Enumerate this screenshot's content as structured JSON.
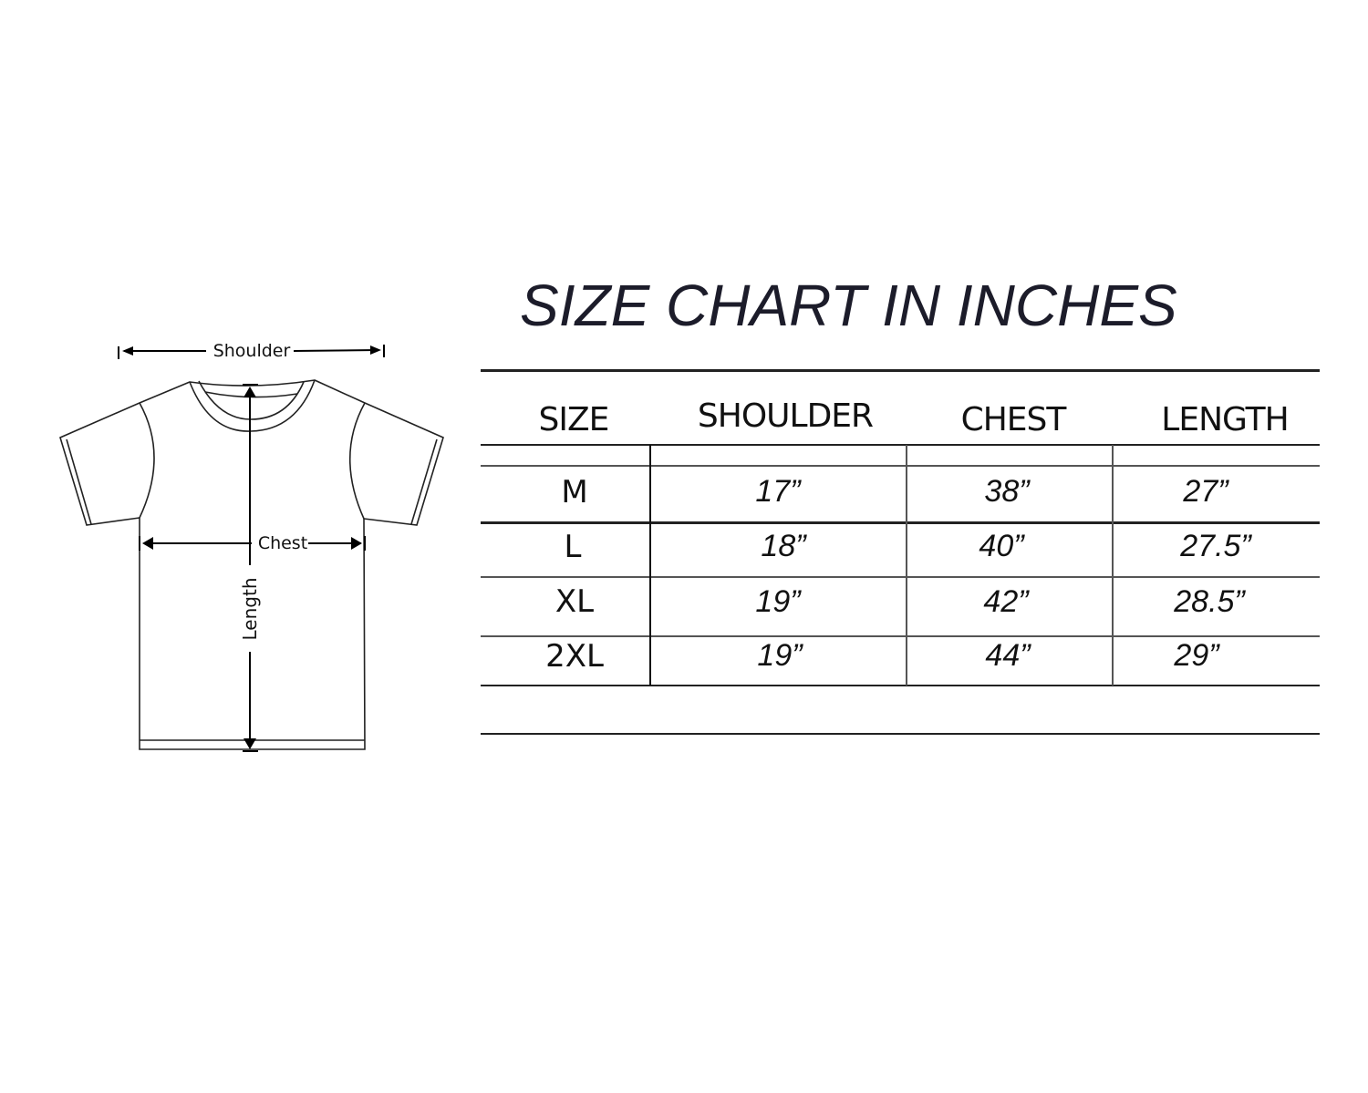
{
  "diagram": {
    "shoulder_label": "Shoulder",
    "chest_label": "Chest",
    "length_label": "Length"
  },
  "chart": {
    "title": "SIZE CHART IN INCHES",
    "headers": [
      "SIZE",
      "SHOULDER",
      "CHEST",
      "LENGTH"
    ],
    "rows": [
      [
        "M",
        "17”",
        "38”",
        "27”"
      ],
      [
        "L",
        "18”",
        "40”",
        "27.5”"
      ],
      [
        "XL",
        "19”",
        "42”",
        "28.5”"
      ],
      [
        "2XL",
        "19”",
        "44”",
        "29”"
      ]
    ]
  }
}
